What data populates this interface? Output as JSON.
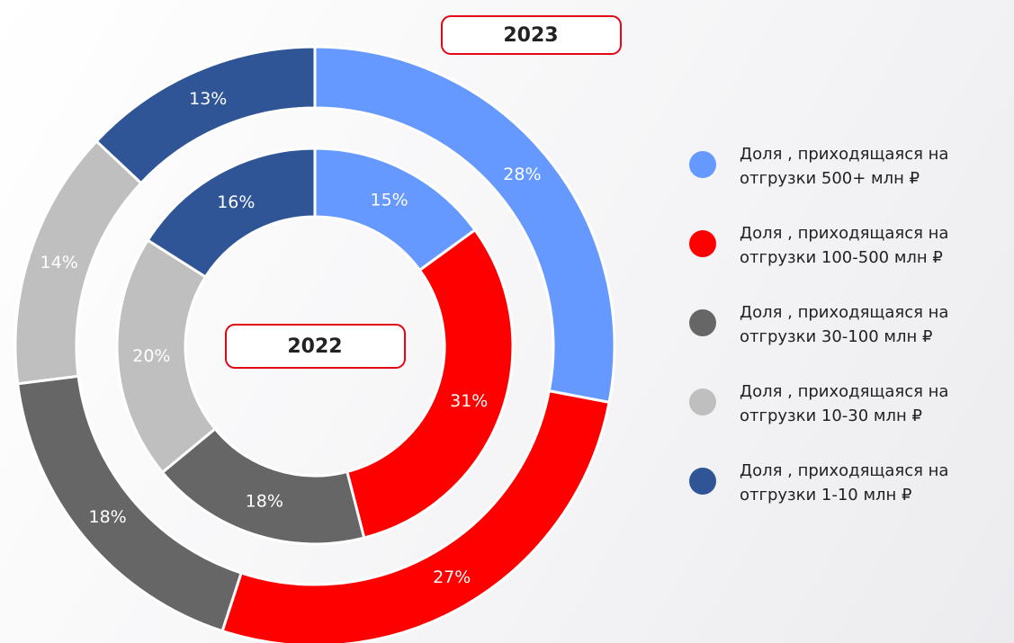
{
  "chart_data": {
    "type": "pie",
    "categories": [
      "Доля , приходящаяся на отгрузки 500+ млн ₽",
      "Доля , приходящаяся на отгрузки 100-500 млн ₽",
      "Доля , приходящаяся на отгрузки 30-100 млн ₽",
      "Доля , приходящаяся на отгрузки 10-30 млн ₽",
      "Доля , приходящаяся на отгрузки 1-10 млн ₽"
    ],
    "colors": [
      "#6699ff",
      "#ff0000",
      "#666666",
      "#bfbfbf",
      "#2f5597"
    ],
    "series": [
      {
        "name": "2023",
        "values": [
          28,
          27,
          18,
          14,
          13
        ],
        "value_labels": [
          "28%",
          "27%",
          "18%",
          "14%",
          "13%"
        ]
      },
      {
        "name": "2022",
        "values": [
          15,
          31,
          18,
          20,
          16
        ],
        "value_labels": [
          "15%",
          "31%",
          "18%",
          "20%",
          "16%"
        ]
      }
    ]
  }
}
